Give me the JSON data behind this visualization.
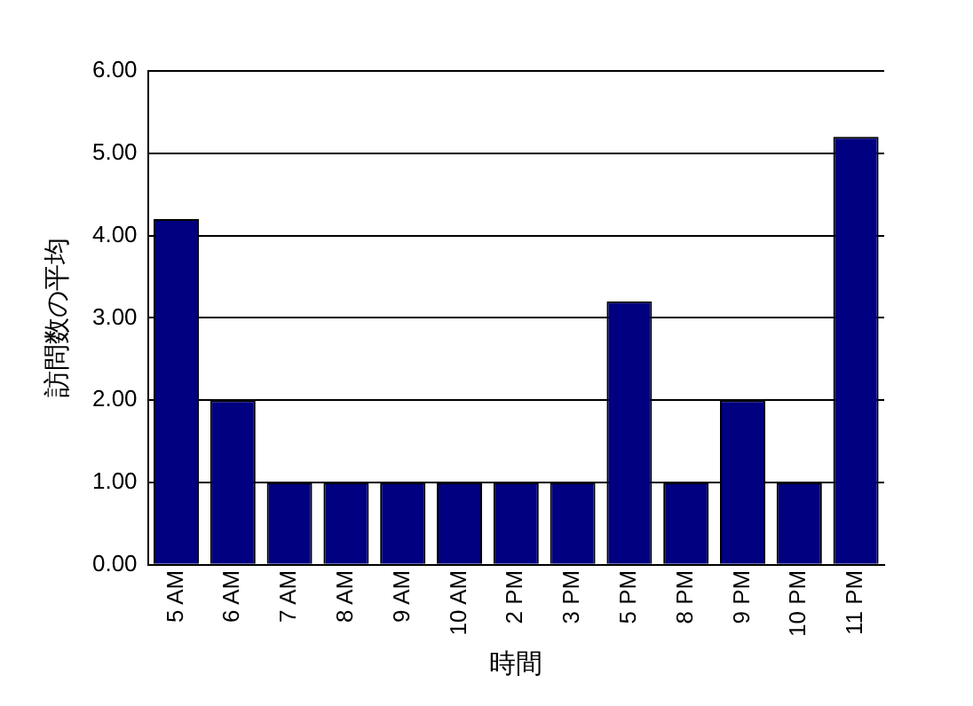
{
  "chart_data": {
    "type": "bar",
    "xlabel": "時間",
    "ylabel": "訪問数の平均",
    "categories": [
      "5 AM",
      "6 AM",
      "7 AM",
      "8 AM",
      "9 AM",
      "10 AM",
      "2 PM",
      "3 PM",
      "5 PM",
      "8 PM",
      "9 PM",
      "10 PM",
      "11 PM"
    ],
    "values": [
      4.2,
      2,
      1,
      1,
      1,
      1,
      1,
      1,
      3.2,
      1,
      2,
      1,
      5.2
    ],
    "color": "#000080",
    "ylim": [
      0,
      6
    ],
    "yticks": [
      {
        "value": 0,
        "label": "0.00"
      },
      {
        "value": 1,
        "label": "1.00"
      },
      {
        "value": 2,
        "label": "2.00"
      },
      {
        "value": 3,
        "label": "3.00"
      },
      {
        "value": 4,
        "label": "4.00"
      },
      {
        "value": 5,
        "label": "5.00"
      },
      {
        "value": 6,
        "label": "6.00"
      }
    ],
    "grid": "y",
    "legend": false
  }
}
